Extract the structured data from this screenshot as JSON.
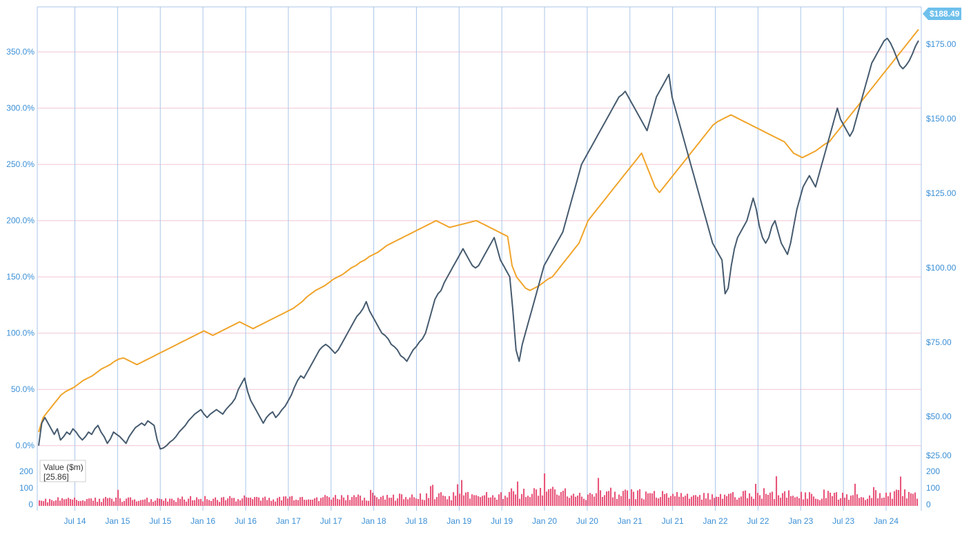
{
  "chart_data": {
    "type": "line",
    "x_ticks": [
      "Jul 14",
      "Jan 15",
      "Jul 15",
      "Jan 16",
      "Jul 16",
      "Jan 17",
      "Jul 17",
      "Jan 18",
      "Jul 18",
      "Jan 19",
      "Jul 19",
      "Jan 20",
      "Jul 20",
      "Jan 21",
      "Jul 21",
      "Jan 22",
      "Jul 22",
      "Jan 23",
      "Jul 23",
      "Jan 24"
    ],
    "y_left_ticks": [
      "0.0%",
      "50.0%",
      "100.0%",
      "150.0%",
      "200.0%",
      "250.0%",
      "300.0%",
      "350.0%"
    ],
    "y_left_range": [
      -10,
      390
    ],
    "y_right_ticks": [
      "$50.00",
      "$75.00",
      "$100.00",
      "$125.00",
      "$150.00",
      "$175.00"
    ],
    "y_right_range": [
      36.5,
      187.5
    ],
    "bottom_left_ticks": [
      "200",
      "100",
      "0"
    ],
    "bottom_right_ticks": [
      "$25.00",
      "200",
      "100",
      "0"
    ],
    "last_price_label": "$188.49",
    "volume_range": [
      0,
      240
    ],
    "colors": {
      "price_line": "#455a6e",
      "benchmark_line": "#f0a42a",
      "volume_bars": "#e8557a",
      "vertical_grid": "#a9c6e8",
      "horizontal_grid": "#f2c6d4",
      "axis_text": "#3a8fd6",
      "price_badge": "#6ec0ec"
    },
    "series": [
      {
        "key": "price",
        "values": [
          0.0,
          20.0,
          25.0,
          20.0,
          15.0,
          10.0,
          15.0,
          5.0,
          8.0,
          12.0,
          10.0,
          15.0,
          12.0,
          8.0,
          5.0,
          8.0,
          12.0,
          10.0,
          15.0,
          18.0,
          12.0,
          8.0,
          2.0,
          6.0,
          12.0,
          10.0,
          8.0,
          5.0,
          2.0,
          8.0,
          12.0,
          16.0,
          18.0,
          20.0,
          18.0,
          22.0,
          20.0,
          18.0,
          5.0,
          -3.0,
          -2.0,
          0.0,
          3.0,
          5.0,
          8.0,
          12.0,
          15.0,
          18.0,
          22.0,
          25.0,
          28.0,
          30.0,
          32.0,
          28.0,
          25.0,
          28.0,
          30.0,
          32.0,
          30.0,
          28.0,
          32.0,
          35.0,
          38.0,
          42.0,
          50.0,
          55.0,
          60.0,
          48.0,
          40.0,
          35.0,
          30.0,
          25.0,
          20.0,
          25.0,
          28.0,
          30.0,
          25.0,
          28.0,
          32.0,
          35.0,
          40.0,
          45.0,
          52.0,
          58.0,
          62.0,
          60.0,
          65.0,
          70.0,
          75.0,
          80.0,
          85.0,
          88.0,
          90.0,
          88.0,
          85.0,
          82.0,
          85.0,
          90.0,
          95.0,
          100.0,
          105.0,
          110.0,
          115.0,
          118.0,
          122.0,
          128.0,
          120.0,
          115.0,
          110.0,
          105.0,
          100.0,
          98.0,
          95.0,
          90.0,
          88.0,
          85.0,
          80.0,
          78.0,
          75.0,
          80.0,
          85.0,
          88.0,
          92.0,
          95.0,
          100.0,
          110.0,
          120.0,
          130.0,
          135.0,
          138.0,
          145.0,
          150.0,
          155.0,
          160.0,
          165.0,
          170.0,
          175.0,
          170.0,
          165.0,
          160.0,
          158.0,
          160.0,
          165.0,
          170.0,
          175.0,
          180.0,
          185.0,
          175.0,
          165.0,
          160.0,
          155.0,
          150.0,
          120.0,
          85.0,
          75.0,
          90.0,
          100.0,
          110.0,
          120.0,
          130.0,
          140.0,
          150.0,
          160.0,
          165.0,
          170.0,
          175.0,
          180.0,
          185.0,
          190.0,
          200.0,
          210.0,
          220.0,
          230.0,
          240.0,
          250.0,
          255.0,
          260.0,
          265.0,
          270.0,
          275.0,
          280.0,
          285.0,
          290.0,
          295.0,
          300.0,
          305.0,
          310.0,
          312.0,
          315.0,
          310.0,
          305.0,
          300.0,
          295.0,
          290.0,
          285.0,
          280.0,
          290.0,
          300.0,
          310.0,
          315.0,
          320.0,
          325.0,
          330.0,
          310.0,
          300.0,
          290.0,
          280.0,
          270.0,
          260.0,
          250.0,
          240.0,
          230.0,
          220.0,
          210.0,
          200.0,
          190.0,
          180.0,
          175.0,
          170.0,
          165.0,
          135.0,
          140.0,
          160.0,
          175.0,
          185.0,
          190.0,
          195.0,
          200.0,
          210.0,
          220.0,
          210.0,
          195.0,
          185.0,
          180.0,
          185.0,
          195.0,
          200.0,
          190.0,
          180.0,
          175.0,
          170.0,
          180.0,
          195.0,
          210.0,
          220.0,
          230.0,
          235.0,
          240.0,
          235.0,
          230.0,
          240.0,
          250.0,
          260.0,
          270.0,
          280.0,
          290.0,
          300.0,
          290.0,
          285.0,
          280.0,
          275.0,
          280.0,
          290.0,
          300.0,
          310.0,
          320.0,
          330.0,
          340.0,
          345.0,
          350.0,
          355.0,
          360.0,
          362.0,
          358.0,
          352.0,
          345.0,
          338.0,
          335.0,
          338.0,
          342.0,
          348.0,
          355.0,
          360.0
        ]
      },
      {
        "key": "benchmark",
        "values": [
          12.0,
          25.0,
          30.0,
          35.0,
          40.0,
          45.0,
          48.0,
          50.0,
          52.0,
          55.0,
          58.0,
          60.0,
          62.0,
          65.0,
          68.0,
          70.0,
          72.0,
          75.0,
          77.0,
          78.0,
          76.0,
          74.0,
          72.0,
          74.0,
          76.0,
          78.0,
          80.0,
          82.0,
          84.0,
          86.0,
          88.0,
          90.0,
          92.0,
          94.0,
          96.0,
          98.0,
          100.0,
          102.0,
          100.0,
          98.0,
          100.0,
          102.0,
          104.0,
          106.0,
          108.0,
          110.0,
          108.0,
          106.0,
          104.0,
          106.0,
          108.0,
          110.0,
          112.0,
          114.0,
          116.0,
          118.0,
          120.0,
          122.0,
          125.0,
          128.0,
          132.0,
          135.0,
          138.0,
          140.0,
          142.0,
          145.0,
          148.0,
          150.0,
          152.0,
          155.0,
          158.0,
          160.0,
          163.0,
          165.0,
          168.0,
          170.0,
          172.0,
          175.0,
          178.0,
          180.0,
          182.0,
          184.0,
          186.0,
          188.0,
          190.0,
          192.0,
          194.0,
          196.0,
          198.0,
          200.0,
          198.0,
          196.0,
          194.0,
          195.0,
          196.0,
          197.0,
          198.0,
          199.0,
          200.0,
          198.0,
          196.0,
          194.0,
          192.0,
          190.0,
          188.0,
          186.0,
          160.0,
          150.0,
          145.0,
          140.0,
          138.0,
          140.0,
          142.0,
          145.0,
          148.0,
          150.0,
          155.0,
          160.0,
          165.0,
          170.0,
          175.0,
          180.0,
          190.0,
          200.0,
          205.0,
          210.0,
          215.0,
          220.0,
          225.0,
          230.0,
          235.0,
          240.0,
          245.0,
          250.0,
          255.0,
          260.0,
          250.0,
          240.0,
          230.0,
          225.0,
          230.0,
          235.0,
          240.0,
          245.0,
          250.0,
          255.0,
          260.0,
          265.0,
          270.0,
          275.0,
          280.0,
          285.0,
          288.0,
          290.0,
          292.0,
          294.0,
          292.0,
          290.0,
          288.0,
          286.0,
          284.0,
          282.0,
          280.0,
          278.0,
          276.0,
          274.0,
          272.0,
          270.0,
          265.0,
          260.0,
          258.0,
          256.0,
          258.0,
          260.0,
          262.0,
          265.0,
          268.0,
          270.0,
          275.0,
          280.0,
          285.0,
          290.0,
          295.0,
          300.0,
          305.0,
          310.0,
          315.0,
          320.0,
          325.0,
          330.0,
          335.0,
          340.0,
          345.0,
          350.0,
          355.0,
          360.0,
          365.0,
          370.0
        ]
      }
    ],
    "volume_legend": {
      "label": "Value ($m)",
      "value": "[25.86]"
    }
  }
}
